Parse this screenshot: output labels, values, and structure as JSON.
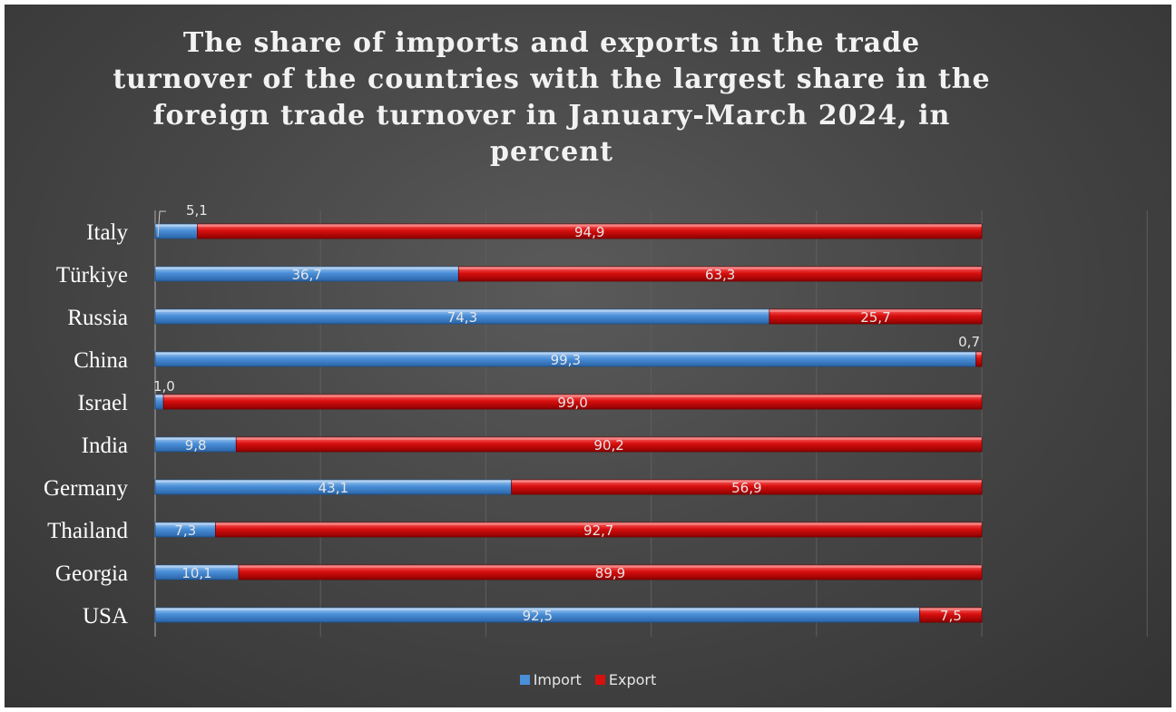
{
  "chart_data": {
    "type": "bar",
    "orientation": "horizontal",
    "stacked": true,
    "title_lines": [
      "The share of imports and exports in the trade",
      "turnover of the countries with the largest share in the",
      "foreign trade turnover in January-March 2024, in",
      "percent"
    ],
    "categories": [
      "Italy",
      "Türkiye",
      "Russia",
      "China",
      "Israel",
      "India",
      "Germany",
      "Thailand",
      "Georgia",
      "USA"
    ],
    "series": [
      {
        "name": "Import",
        "color": "#4a8fd8",
        "values": [
          5.1,
          36.7,
          74.3,
          99.3,
          1.0,
          9.8,
          43.1,
          7.3,
          10.1,
          92.5
        ],
        "labels": [
          "5,1",
          "36,7",
          "74,3",
          "99,3",
          "1,0",
          "9,8",
          "43,1",
          "7,3",
          "10,1",
          "92,5"
        ]
      },
      {
        "name": "Export",
        "color": "#d80f0f",
        "values": [
          94.9,
          63.3,
          25.7,
          0.7,
          99.0,
          90.2,
          56.9,
          92.7,
          89.9,
          7.5
        ],
        "labels": [
          "94,9",
          "63,3",
          "25,7",
          "0,7",
          "99,0",
          "90,2",
          "56,9",
          "92,7",
          "89,9",
          "7,5"
        ]
      }
    ],
    "xlim": [
      0,
      120
    ],
    "grid": true,
    "legend_position": "bottom"
  }
}
